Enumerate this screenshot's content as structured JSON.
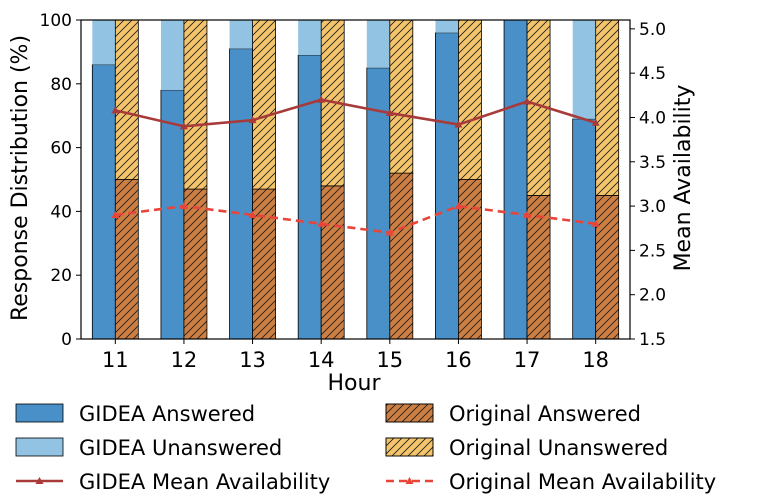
{
  "chart_data": {
    "type": "bar",
    "title": "",
    "xlabel": "Hour",
    "ylabel": "Response Distribution (%)",
    "y2label": "Mean Availability",
    "categories": [
      "11",
      "12",
      "13",
      "14",
      "15",
      "16",
      "17",
      "18"
    ],
    "ylim": [
      0,
      100
    ],
    "y2lim": [
      1.5,
      5.1
    ],
    "yticks": [
      "0",
      "20",
      "40",
      "60",
      "80",
      "100"
    ],
    "y2ticks": [
      "1.5",
      "2.0",
      "2.5",
      "3.0",
      "3.5",
      "4.0",
      "4.5",
      "5.0"
    ],
    "series": [
      {
        "name": "GIDEA Answered",
        "kind": "stacked-bar",
        "group": "GIDEA",
        "values": [
          86,
          78,
          91,
          89,
          85,
          96,
          100,
          69
        ]
      },
      {
        "name": "GIDEA Unanswered",
        "kind": "stacked-bar",
        "group": "GIDEA",
        "values": [
          14,
          22,
          9,
          11,
          15,
          4,
          0,
          31
        ]
      },
      {
        "name": "Original Answered",
        "kind": "stacked-bar",
        "group": "Original",
        "values": [
          50,
          47,
          47,
          48,
          52,
          50,
          45,
          45
        ]
      },
      {
        "name": "Original Unanswered",
        "kind": "stacked-bar",
        "group": "Original",
        "values": [
          50,
          53,
          53,
          52,
          48,
          50,
          55,
          55
        ]
      },
      {
        "name": "GIDEA Mean Availability",
        "kind": "line",
        "axis": "right",
        "values": [
          4.08,
          3.9,
          3.97,
          4.2,
          4.05,
          3.92,
          4.18,
          3.94
        ]
      },
      {
        "name": "Original Mean Availability",
        "kind": "line",
        "axis": "right",
        "values": [
          2.9,
          3.0,
          2.9,
          2.8,
          2.7,
          3.0,
          2.9,
          2.8
        ]
      }
    ],
    "legend": "bottom",
    "colors": {
      "gidea_answered": "#4a90c8",
      "gidea_unanswered": "#93c3e3",
      "original_answered": "#cd7f43",
      "original_unanswered": "#f4c46a",
      "gidea_line": "#a83a3a",
      "original_line": "#e8453a"
    }
  }
}
